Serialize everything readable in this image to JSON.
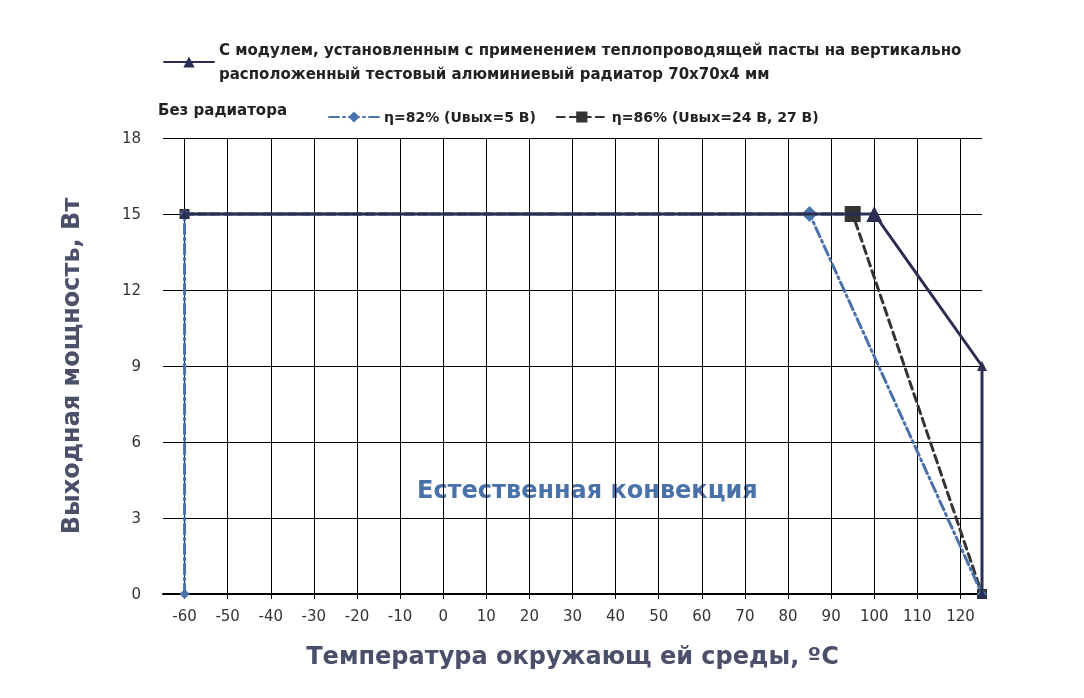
{
  "chart_data": {
    "type": "line",
    "xlabel": "Температура окружающ ей среды, ºС",
    "ylabel": "Выходная мощность, Вт",
    "legend_title": "Без радиатора",
    "legend": "top",
    "grid": true,
    "xlim": [
      -65,
      125
    ],
    "xticks": [
      -60,
      -50,
      -40,
      -30,
      -20,
      -10,
      0,
      10,
      20,
      30,
      40,
      50,
      60,
      70,
      80,
      90,
      100,
      110,
      120
    ],
    "ylim": [
      0,
      18
    ],
    "yticks": [
      0,
      3,
      6,
      9,
      12,
      15,
      18
    ],
    "annotations": [
      "Естественная конвекция"
    ],
    "series": [
      {
        "name": "С модулем, установленным с применением теплопроводящей пасты на вертикально расположенный тестовый алюминиевый радиатор 70x70x4 мм",
        "color": "#2b2d52",
        "x": [
          -60,
          100,
          125,
          125
        ],
        "values": [
          15,
          15,
          9,
          0
        ],
        "marker": "triangle",
        "line_style": "solid"
      },
      {
        "name": "η=82% (Uвых=5 В)",
        "color": "#4a72aa",
        "x": [
          -60,
          -60,
          85,
          125
        ],
        "values": [
          0,
          15,
          15,
          0
        ],
        "marker": "diamond",
        "line_style": "dashdot"
      },
      {
        "name": "η=86% (Uвых=24 В, 27 В)",
        "color": "#333333",
        "x": [
          -60,
          95,
          125
        ],
        "values": [
          15,
          15,
          0
        ],
        "marker": "square",
        "line_style": "dashed"
      }
    ]
  }
}
